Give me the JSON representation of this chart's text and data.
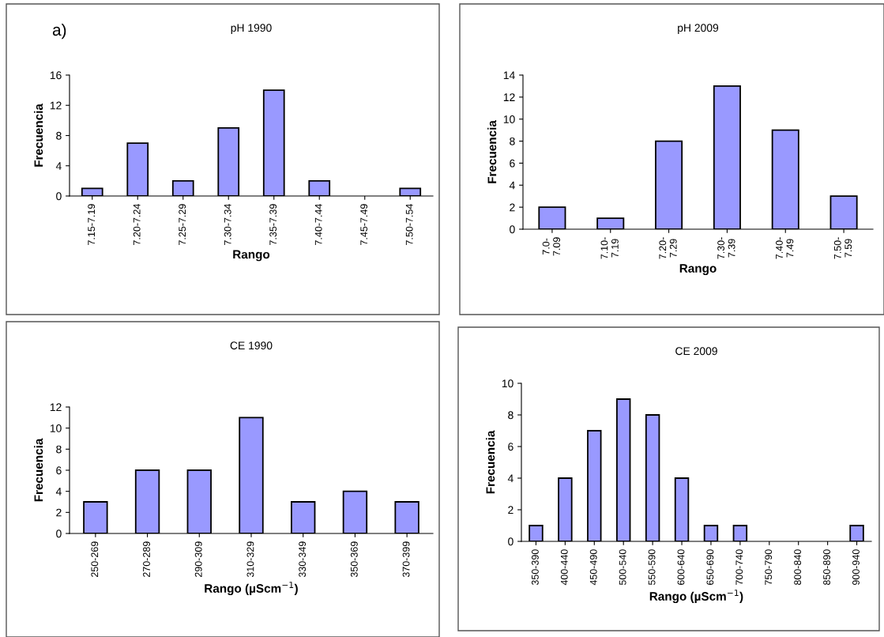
{
  "chart_data": [
    {
      "type": "bar",
      "title": "pH 1990",
      "xlabel": "Rango",
      "ylabel": "Frecuencia",
      "annotations": [
        "a)"
      ],
      "categories": [
        "7.15-7.19",
        "7.20-7.24",
        "7.25-7.29",
        "7.30-7.34",
        "7.35-7.39",
        "7.40-7.44",
        "7.45-7.49",
        "7.50-7.54"
      ],
      "values": [
        1,
        7,
        2,
        9,
        14,
        2,
        0,
        1
      ],
      "color": "#9999ff",
      "ylim": [
        0,
        16
      ],
      "yticks": [
        0,
        4,
        8,
        12,
        16
      ],
      "grid": false
    },
    {
      "type": "bar",
      "title": "pH 2009",
      "xlabel": "Rango",
      "ylabel": "Frecuencia",
      "categories": [
        "7.0-\n7.09",
        "7.10-\n7.19",
        "7.20-\n7.29",
        "7.30-\n7.39",
        "7.40-\n7.49",
        "7.50-\n7.59"
      ],
      "values": [
        2,
        1,
        8,
        13,
        9,
        3
      ],
      "color": "#9999ff",
      "ylim": [
        0,
        14
      ],
      "yticks": [
        0,
        2,
        4,
        6,
        8,
        10,
        12,
        14
      ],
      "grid": false
    },
    {
      "type": "bar",
      "title": "CE 1990",
      "xlabel": "Rango (µScm$^{−1}$)",
      "ylabel": "Frecuencia",
      "categories": [
        "250-269",
        "270-289",
        "290-309",
        "310-329",
        "330-349",
        "350-369",
        "370-399"
      ],
      "values": [
        3,
        6,
        6,
        11,
        3,
        4,
        3
      ],
      "color": "#9999ff",
      "ylim": [
        0,
        12
      ],
      "yticks": [
        0,
        2,
        4,
        6,
        8,
        10,
        12
      ],
      "grid": false
    },
    {
      "type": "bar",
      "title": "CE 2009",
      "xlabel": "Rango (µScm$^{−1}$)",
      "ylabel": "Frecuencia",
      "categories": [
        "350-390",
        "400-440",
        "450-490",
        "500-540",
        "550-590",
        "600-640",
        "650-690",
        "700-740",
        "750-790",
        "800-840",
        "850-890",
        "900-940"
      ],
      "values": [
        1,
        4,
        7,
        9,
        8,
        4,
        1,
        1,
        0,
        0,
        0,
        1
      ],
      "color": "#9999ff",
      "ylim": [
        0,
        10
      ],
      "yticks": [
        0,
        2,
        4,
        6,
        8,
        10
      ],
      "grid": false
    }
  ]
}
